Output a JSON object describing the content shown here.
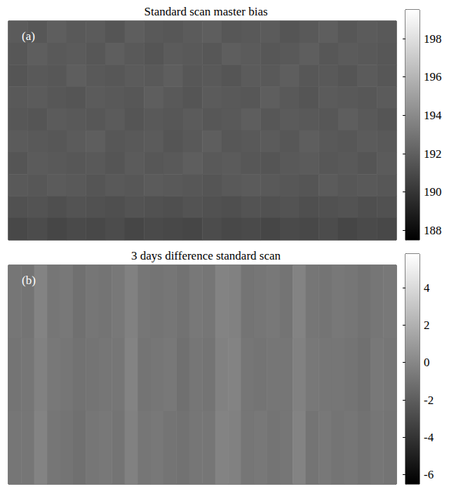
{
  "chart_data": [
    {
      "type": "heatmap",
      "title": "Standard scan master bias",
      "annotation": "(a)",
      "color": "gray",
      "tick_labels": false,
      "cells": [
        [
          191.8,
          191.6,
          191.9,
          191.7,
          191.8,
          191.5,
          191.9,
          191.7,
          191.6,
          191.8,
          191.9,
          191.6,
          191.7,
          191.8,
          191.5,
          191.7,
          191.9,
          191.6,
          191.8,
          191.7
        ],
        [
          191.6,
          191.9,
          191.7,
          191.8,
          191.6,
          191.9,
          191.7,
          191.5,
          191.8,
          191.7,
          191.6,
          191.9,
          191.8,
          191.6,
          191.7,
          191.9,
          191.6,
          191.8,
          191.7,
          191.6
        ],
        [
          191.5,
          191.7,
          191.6,
          191.9,
          191.7,
          191.6,
          191.8,
          191.7,
          191.9,
          191.6,
          191.7,
          191.5,
          191.8,
          191.7,
          191.9,
          191.6,
          191.7,
          191.5,
          191.8,
          191.6
        ],
        [
          191.7,
          191.8,
          191.6,
          191.5,
          191.8,
          191.7,
          191.6,
          191.9,
          191.7,
          191.5,
          191.8,
          191.7,
          191.6,
          191.9,
          191.7,
          191.5,
          191.8,
          191.7,
          191.6,
          191.8
        ],
        [
          191.6,
          191.5,
          191.8,
          191.7,
          191.6,
          191.8,
          191.5,
          191.7,
          191.6,
          191.8,
          191.6,
          191.7,
          191.9,
          191.6,
          191.8,
          191.7,
          191.6,
          191.9,
          191.7,
          191.5
        ],
        [
          191.8,
          191.7,
          191.6,
          191.8,
          191.9,
          191.6,
          191.7,
          191.8,
          191.5,
          191.7,
          191.9,
          191.6,
          191.7,
          191.8,
          191.6,
          191.9,
          191.7,
          191.6,
          191.8,
          191.7
        ],
        [
          191.5,
          191.8,
          191.7,
          191.6,
          191.7,
          191.5,
          191.8,
          191.6,
          191.7,
          191.9,
          191.7,
          191.8,
          191.6,
          191.5,
          191.7,
          191.8,
          191.6,
          191.7,
          191.5,
          191.8
        ],
        [
          191.7,
          191.6,
          191.8,
          191.7,
          191.5,
          191.7,
          191.6,
          191.8,
          191.7,
          191.6,
          191.5,
          191.7,
          191.8,
          191.7,
          191.6,
          191.5,
          191.8,
          191.6,
          191.7,
          191.6
        ],
        [
          191.3,
          191.4,
          191.2,
          191.4,
          191.3,
          191.2,
          191.4,
          191.3,
          191.2,
          191.4,
          191.3,
          191.2,
          191.4,
          191.3,
          191.4,
          191.2,
          191.3,
          191.4,
          191.2,
          191.3
        ],
        [
          190.9,
          191.1,
          190.8,
          191.0,
          190.9,
          191.1,
          190.8,
          191.0,
          190.9,
          190.8,
          191.1,
          190.9,
          191.0,
          190.8,
          191.0,
          190.9,
          191.1,
          190.8,
          191.0,
          190.9
        ]
      ],
      "colorbar": {
        "range": [
          187.5,
          199.5
        ],
        "ticks": [
          188,
          190,
          192,
          194,
          196,
          198
        ]
      }
    },
    {
      "type": "heatmap",
      "title": "3 days difference standard scan",
      "annotation": "(b)",
      "color": "gray",
      "tick_labels": false,
      "cells": [
        [
          -0.8,
          -0.9,
          -0.2,
          -0.8,
          -0.7,
          -1.1,
          -0.8,
          -0.9,
          -0.7,
          -0.3,
          -0.8,
          -0.9,
          -0.8,
          -1.0,
          -0.7,
          -0.8,
          -0.2,
          -0.3,
          -0.9,
          -0.8,
          -0.7,
          -0.9,
          -0.2,
          -0.8,
          -0.9,
          -0.7,
          -0.8,
          -1.0,
          -0.8,
          -0.7
        ],
        [
          -0.9,
          -0.8,
          -0.3,
          -0.7,
          -0.8,
          -1.0,
          -0.9,
          -0.8,
          -0.8,
          -0.2,
          -0.9,
          -0.8,
          -0.7,
          -1.1,
          -0.8,
          -0.9,
          -0.3,
          -0.2,
          -0.8,
          -0.9,
          -0.8,
          -0.8,
          -0.3,
          -0.7,
          -0.8,
          -0.8,
          -0.9,
          -1.1,
          -0.7,
          -0.8
        ],
        [
          -0.8,
          -0.8,
          -0.2,
          -0.8,
          -0.9,
          -1.1,
          -0.8,
          -0.7,
          -0.9,
          -0.3,
          -0.8,
          -0.7,
          -0.9,
          -1.0,
          -0.8,
          -0.8,
          -0.2,
          -0.3,
          -0.8,
          -0.7,
          -0.9,
          -0.8,
          -0.2,
          -0.9,
          -0.7,
          -0.9,
          -0.8,
          -1.0,
          -0.8,
          -0.9
        ]
      ],
      "colorbar": {
        "range": [
          -6.5,
          5.8
        ],
        "ticks": [
          -6,
          -4,
          -2,
          0,
          2,
          4
        ]
      }
    }
  ]
}
